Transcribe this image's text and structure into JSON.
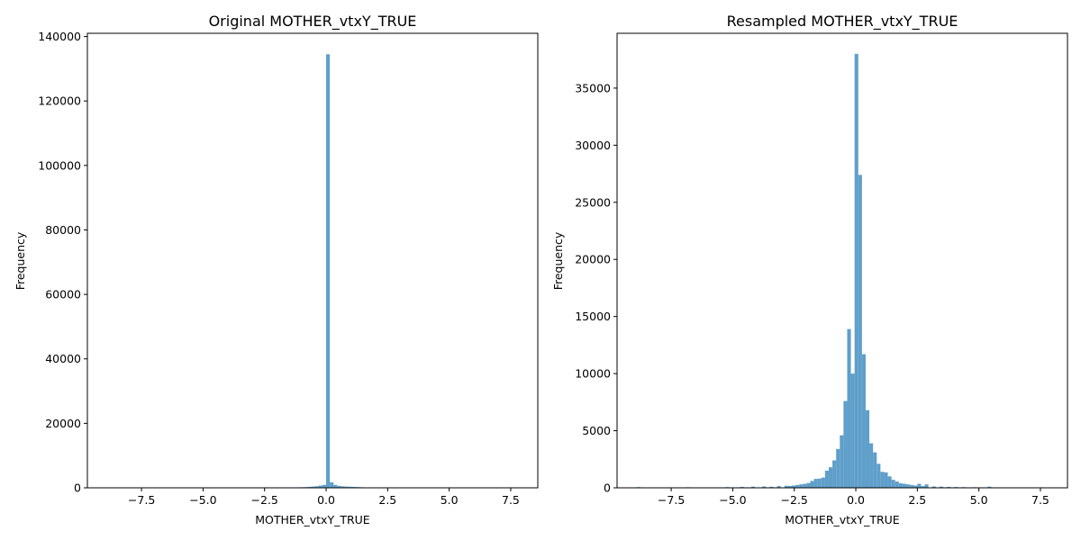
{
  "chart_data": [
    {
      "type": "bar",
      "title": "Original MOTHER_vtxY_TRUE",
      "xlabel": "MOTHER_vtxY_TRUE",
      "ylabel": "Frequency",
      "xlim": [
        -9.7,
        8.6
      ],
      "ylim": [
        0,
        141000
      ],
      "xticks": [
        -7.5,
        -5.0,
        -2.5,
        0.0,
        2.5,
        5.0,
        7.5
      ],
      "xtick_labels": [
        "−7.5",
        "−5.0",
        "−2.5",
        "0.0",
        "2.5",
        "5.0",
        "7.5"
      ],
      "yticks": [
        0,
        20000,
        40000,
        60000,
        80000,
        100000,
        120000,
        140000
      ],
      "ytick_labels": [
        "0",
        "20000",
        "40000",
        "60000",
        "80000",
        "100000",
        "120000",
        "140000"
      ],
      "grid": false,
      "bar_color": "#5f9fca",
      "bins": [
        {
          "x0": -1.2,
          "x1": -1.05,
          "value": 150
        },
        {
          "x0": -1.05,
          "x1": -0.9,
          "value": 180
        },
        {
          "x0": -0.9,
          "x1": -0.75,
          "value": 220
        },
        {
          "x0": -0.75,
          "x1": -0.6,
          "value": 300
        },
        {
          "x0": -0.6,
          "x1": -0.45,
          "value": 380
        },
        {
          "x0": -0.45,
          "x1": -0.3,
          "value": 500
        },
        {
          "x0": -0.3,
          "x1": -0.15,
          "value": 700
        },
        {
          "x0": -0.15,
          "x1": 0.0,
          "value": 900
        },
        {
          "x0": 0.0,
          "x1": 0.15,
          "value": 134500
        },
        {
          "x0": 0.15,
          "x1": 0.3,
          "value": 1700
        },
        {
          "x0": 0.3,
          "x1": 0.45,
          "value": 900
        },
        {
          "x0": 0.45,
          "x1": 0.6,
          "value": 600
        },
        {
          "x0": 0.6,
          "x1": 0.75,
          "value": 450
        },
        {
          "x0": 0.75,
          "x1": 0.9,
          "value": 380
        },
        {
          "x0": 0.9,
          "x1": 1.05,
          "value": 330
        },
        {
          "x0": 1.05,
          "x1": 1.2,
          "value": 280
        },
        {
          "x0": 1.2,
          "x1": 1.35,
          "value": 230
        },
        {
          "x0": 1.35,
          "x1": 1.5,
          "value": 180
        },
        {
          "x0": 1.5,
          "x1": 1.65,
          "value": 120
        }
      ]
    },
    {
      "type": "bar",
      "title": "Resampled MOTHER_vtxY_TRUE",
      "xlabel": "MOTHER_vtxY_TRUE",
      "ylabel": "Frequency",
      "xlim": [
        -9.7,
        8.6
      ],
      "ylim": [
        0,
        39800
      ],
      "xticks": [
        -7.5,
        -5.0,
        -2.5,
        0.0,
        2.5,
        5.0,
        7.5
      ],
      "xtick_labels": [
        "−7.5",
        "−5.0",
        "−2.5",
        "0.0",
        "2.5",
        "5.0",
        "7.5"
      ],
      "yticks": [
        0,
        5000,
        10000,
        15000,
        20000,
        25000,
        30000,
        35000
      ],
      "ytick_labels": [
        "0",
        "5000",
        "10000",
        "15000",
        "20000",
        "25000",
        "30000",
        "35000"
      ],
      "grid": false,
      "bar_color": "#5f9fca",
      "bins": [
        {
          "x0": -8.9,
          "x1": -8.75,
          "value": 60
        },
        {
          "x0": -8.3,
          "x1": -8.15,
          "value": 40
        },
        {
          "x0": -7.4,
          "x1": -7.25,
          "value": 30
        },
        {
          "x0": -6.9,
          "x1": -6.75,
          "value": 50
        },
        {
          "x0": -5.9,
          "x1": -5.75,
          "value": 40
        },
        {
          "x0": -5.3,
          "x1": -5.15,
          "value": 60
        },
        {
          "x0": -4.7,
          "x1": -4.55,
          "value": 80
        },
        {
          "x0": -4.25,
          "x1": -4.1,
          "value": 100
        },
        {
          "x0": -3.8,
          "x1": -3.65,
          "value": 120
        },
        {
          "x0": -3.5,
          "x1": -3.35,
          "value": 90
        },
        {
          "x0": -3.2,
          "x1": -3.05,
          "value": 150
        },
        {
          "x0": -2.9,
          "x1": -2.75,
          "value": 180
        },
        {
          "x0": -2.75,
          "x1": -2.6,
          "value": 160
        },
        {
          "x0": -2.6,
          "x1": -2.45,
          "value": 200
        },
        {
          "x0": -2.45,
          "x1": -2.3,
          "value": 250
        },
        {
          "x0": -2.3,
          "x1": -2.15,
          "value": 300
        },
        {
          "x0": -2.15,
          "x1": -2.0,
          "value": 350
        },
        {
          "x0": -2.0,
          "x1": -1.85,
          "value": 420
        },
        {
          "x0": -1.85,
          "x1": -1.7,
          "value": 600
        },
        {
          "x0": -1.7,
          "x1": -1.55,
          "value": 780
        },
        {
          "x0": -1.55,
          "x1": -1.4,
          "value": 800
        },
        {
          "x0": -1.4,
          "x1": -1.25,
          "value": 900
        },
        {
          "x0": -1.25,
          "x1": -1.1,
          "value": 1500
        },
        {
          "x0": -1.1,
          "x1": -0.95,
          "value": 1800
        },
        {
          "x0": -0.95,
          "x1": -0.8,
          "value": 2400
        },
        {
          "x0": -0.8,
          "x1": -0.65,
          "value": 3400
        },
        {
          "x0": -0.65,
          "x1": -0.5,
          "value": 4600
        },
        {
          "x0": -0.5,
          "x1": -0.35,
          "value": 7600
        },
        {
          "x0": -0.35,
          "x1": -0.2,
          "value": 13900
        },
        {
          "x0": -0.2,
          "x1": -0.05,
          "value": 10000
        },
        {
          "x0": -0.05,
          "x1": 0.1,
          "value": 38000
        },
        {
          "x0": 0.1,
          "x1": 0.25,
          "value": 27400
        },
        {
          "x0": 0.25,
          "x1": 0.4,
          "value": 11700
        },
        {
          "x0": 0.4,
          "x1": 0.55,
          "value": 6800
        },
        {
          "x0": 0.55,
          "x1": 0.7,
          "value": 3900
        },
        {
          "x0": 0.7,
          "x1": 0.85,
          "value": 3100
        },
        {
          "x0": 0.85,
          "x1": 1.0,
          "value": 2100
        },
        {
          "x0": 1.0,
          "x1": 1.15,
          "value": 1400
        },
        {
          "x0": 1.15,
          "x1": 1.3,
          "value": 1350
        },
        {
          "x0": 1.3,
          "x1": 1.45,
          "value": 1000
        },
        {
          "x0": 1.45,
          "x1": 1.6,
          "value": 700
        },
        {
          "x0": 1.6,
          "x1": 1.75,
          "value": 550
        },
        {
          "x0": 1.75,
          "x1": 1.9,
          "value": 400
        },
        {
          "x0": 1.9,
          "x1": 2.05,
          "value": 350
        },
        {
          "x0": 2.05,
          "x1": 2.2,
          "value": 300
        },
        {
          "x0": 2.2,
          "x1": 2.35,
          "value": 250
        },
        {
          "x0": 2.35,
          "x1": 2.5,
          "value": 200
        },
        {
          "x0": 2.5,
          "x1": 2.65,
          "value": 350
        },
        {
          "x0": 2.65,
          "x1": 2.8,
          "value": 150
        },
        {
          "x0": 2.8,
          "x1": 2.95,
          "value": 300
        },
        {
          "x0": 3.1,
          "x1": 3.25,
          "value": 120
        },
        {
          "x0": 3.4,
          "x1": 3.55,
          "value": 100
        },
        {
          "x0": 3.7,
          "x1": 3.85,
          "value": 80
        },
        {
          "x0": 4.0,
          "x1": 4.15,
          "value": 70
        },
        {
          "x0": 4.3,
          "x1": 4.45,
          "value": 60
        },
        {
          "x0": 4.75,
          "x1": 4.9,
          "value": 50
        },
        {
          "x0": 5.35,
          "x1": 5.5,
          "value": 100
        },
        {
          "x0": 7.5,
          "x1": 7.65,
          "value": 30
        }
      ]
    }
  ]
}
